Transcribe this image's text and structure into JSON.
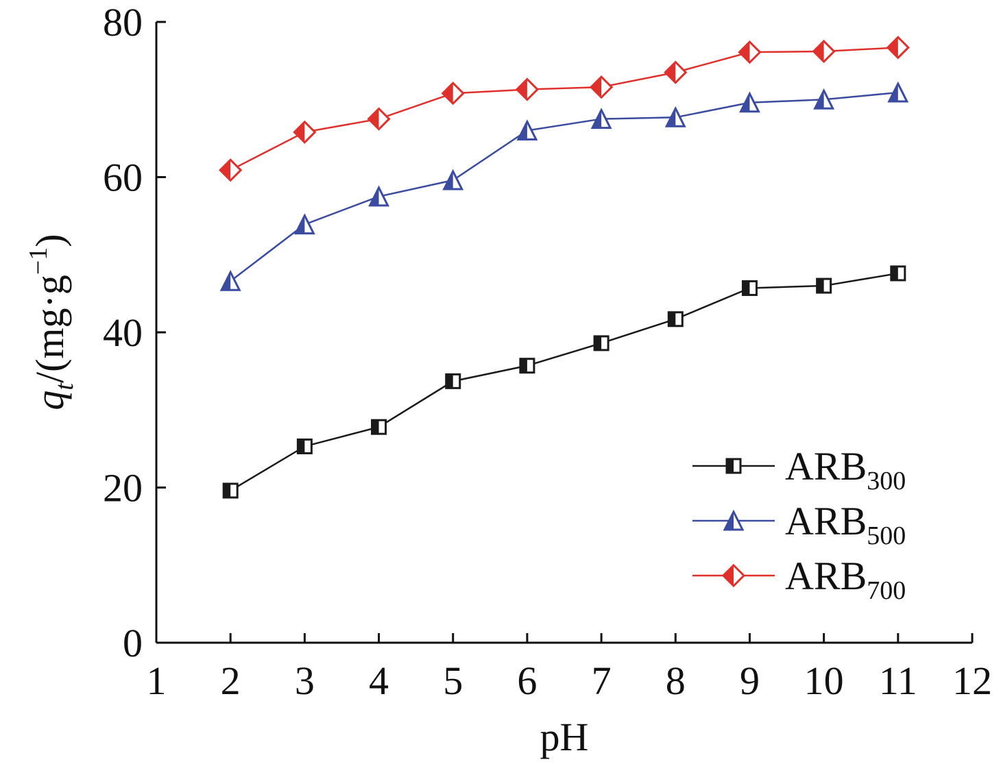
{
  "chart_data": {
    "type": "line",
    "xlabel": "pH",
    "ylabel": {
      "var": "q",
      "sub": "t",
      "units": "/(mg·g",
      "sup": "−1",
      "close": ")"
    },
    "xlim": [
      1,
      12
    ],
    "ylim": [
      0,
      80
    ],
    "xticks": [
      1,
      2,
      3,
      4,
      5,
      6,
      7,
      8,
      9,
      10,
      11,
      12
    ],
    "yticks": [
      0,
      20,
      40,
      60,
      80
    ],
    "grid": false,
    "legend_position": "bottom-right",
    "x": [
      2,
      3,
      4,
      5,
      6,
      7,
      8,
      9,
      10,
      11
    ],
    "series": [
      {
        "name": "ARB",
        "name_sub": "300",
        "color": "#1a1a1a",
        "marker": "half-square",
        "values": [
          19.6,
          25.3,
          27.8,
          33.7,
          35.7,
          38.6,
          41.7,
          45.7,
          46.0,
          47.6
        ]
      },
      {
        "name": "ARB",
        "name_sub": "500",
        "color": "#3a4ba0",
        "marker": "half-triangle",
        "values": [
          46.6,
          53.9,
          57.5,
          59.6,
          66.0,
          67.5,
          67.7,
          69.6,
          70.0,
          70.9
        ]
      },
      {
        "name": "ARB",
        "name_sub": "700",
        "color": "#e0302c",
        "marker": "half-diamond",
        "values": [
          60.9,
          65.8,
          67.5,
          70.8,
          71.3,
          71.6,
          73.5,
          76.1,
          76.2,
          76.7
        ]
      }
    ]
  }
}
